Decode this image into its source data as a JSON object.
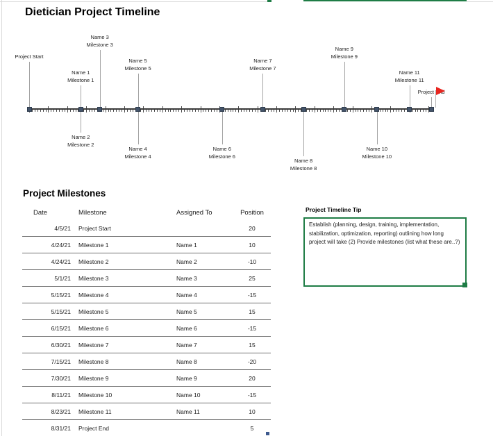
{
  "page": {
    "title": "Dietician Project Timeline",
    "section_title": "Project Milestones"
  },
  "chart_data": {
    "type": "timeline",
    "title": "Dietician Project Timeline",
    "axis": {
      "start_date": "4/5/21",
      "end_date": "8/31/21",
      "tick_unit": "day",
      "major_tick_every_days": 7,
      "gridlines": false
    },
    "position_range": [
      -20,
      25
    ],
    "end_marker": "red-flag-icon",
    "points": [
      {
        "date": "4/5/21",
        "label": "Project Start",
        "assigned_to": "",
        "position": 20
      },
      {
        "date": "4/24/21",
        "label": "Milestone 1",
        "assigned_to": "Name 1",
        "position": 10
      },
      {
        "date": "4/24/21",
        "label": "Milestone 2",
        "assigned_to": "Name 2",
        "position": -10
      },
      {
        "date": "5/1/21",
        "label": "Milestone 3",
        "assigned_to": "Name 3",
        "position": 25
      },
      {
        "date": "5/15/21",
        "label": "Milestone 4",
        "assigned_to": "Name 4",
        "position": -15
      },
      {
        "date": "5/15/21",
        "label": "Milestone 5",
        "assigned_to": "Name 5",
        "position": 15
      },
      {
        "date": "6/15/21",
        "label": "Milestone 6",
        "assigned_to": "Name 6",
        "position": -15
      },
      {
        "date": "6/30/21",
        "label": "Milestone 7",
        "assigned_to": "Name 7",
        "position": 15
      },
      {
        "date": "7/15/21",
        "label": "Milestone 8",
        "assigned_to": "Name 8",
        "position": -20
      },
      {
        "date": "7/30/21",
        "label": "Milestone 9",
        "assigned_to": "Name 9",
        "position": 20
      },
      {
        "date": "8/11/21",
        "label": "Milestone 10",
        "assigned_to": "Name 10",
        "position": -15
      },
      {
        "date": "8/23/21",
        "label": "Milestone 11",
        "assigned_to": "Name 11",
        "position": 10
      },
      {
        "date": "8/31/21",
        "label": "Project End",
        "assigned_to": "",
        "position": 5
      }
    ]
  },
  "table": {
    "headers": [
      "Date",
      "Milestone",
      "Assigned To",
      "Position"
    ],
    "rows": [
      [
        "4/5/21",
        "Project Start",
        "",
        "20"
      ],
      [
        "4/24/21",
        "Milestone 1",
        "Name 1",
        "10"
      ],
      [
        "4/24/21",
        "Milestone 2",
        "Name 2",
        "-10"
      ],
      [
        "5/1/21",
        "Milestone 3",
        "Name 3",
        "25"
      ],
      [
        "5/15/21",
        "Milestone 4",
        "Name 4",
        "-15"
      ],
      [
        "5/15/21",
        "Milestone 5",
        "Name 5",
        "15"
      ],
      [
        "6/15/21",
        "Milestone 6",
        "Name 6",
        "-15"
      ],
      [
        "6/30/21",
        "Milestone 7",
        "Name 7",
        "15"
      ],
      [
        "7/15/21",
        "Milestone 8",
        "Name 8",
        "-20"
      ],
      [
        "7/30/21",
        "Milestone 9",
        "Name 9",
        "20"
      ],
      [
        "8/11/21",
        "Milestone 10",
        "Name 10",
        "-15"
      ],
      [
        "8/23/21",
        "Milestone 11",
        "Name 11",
        "10"
      ],
      [
        "8/31/21",
        "Project End",
        "",
        "5"
      ]
    ]
  },
  "tip": {
    "title": "Project Timeline Tip",
    "body": " Establish  (planning, design, training, implementation, stabilization, optimization, reporting)  outlining how long project will take (2) Provide milestones (list what these are..?)"
  },
  "colors": {
    "marker": "#44546A",
    "flag_red": "#e8251f",
    "tip_border_green": "#1e7c45",
    "leader_gray": "#a3a3a3",
    "axis": "#3a3a3a",
    "table_line": "#6e6e6e",
    "frame_gray": "#d9d9d9"
  }
}
